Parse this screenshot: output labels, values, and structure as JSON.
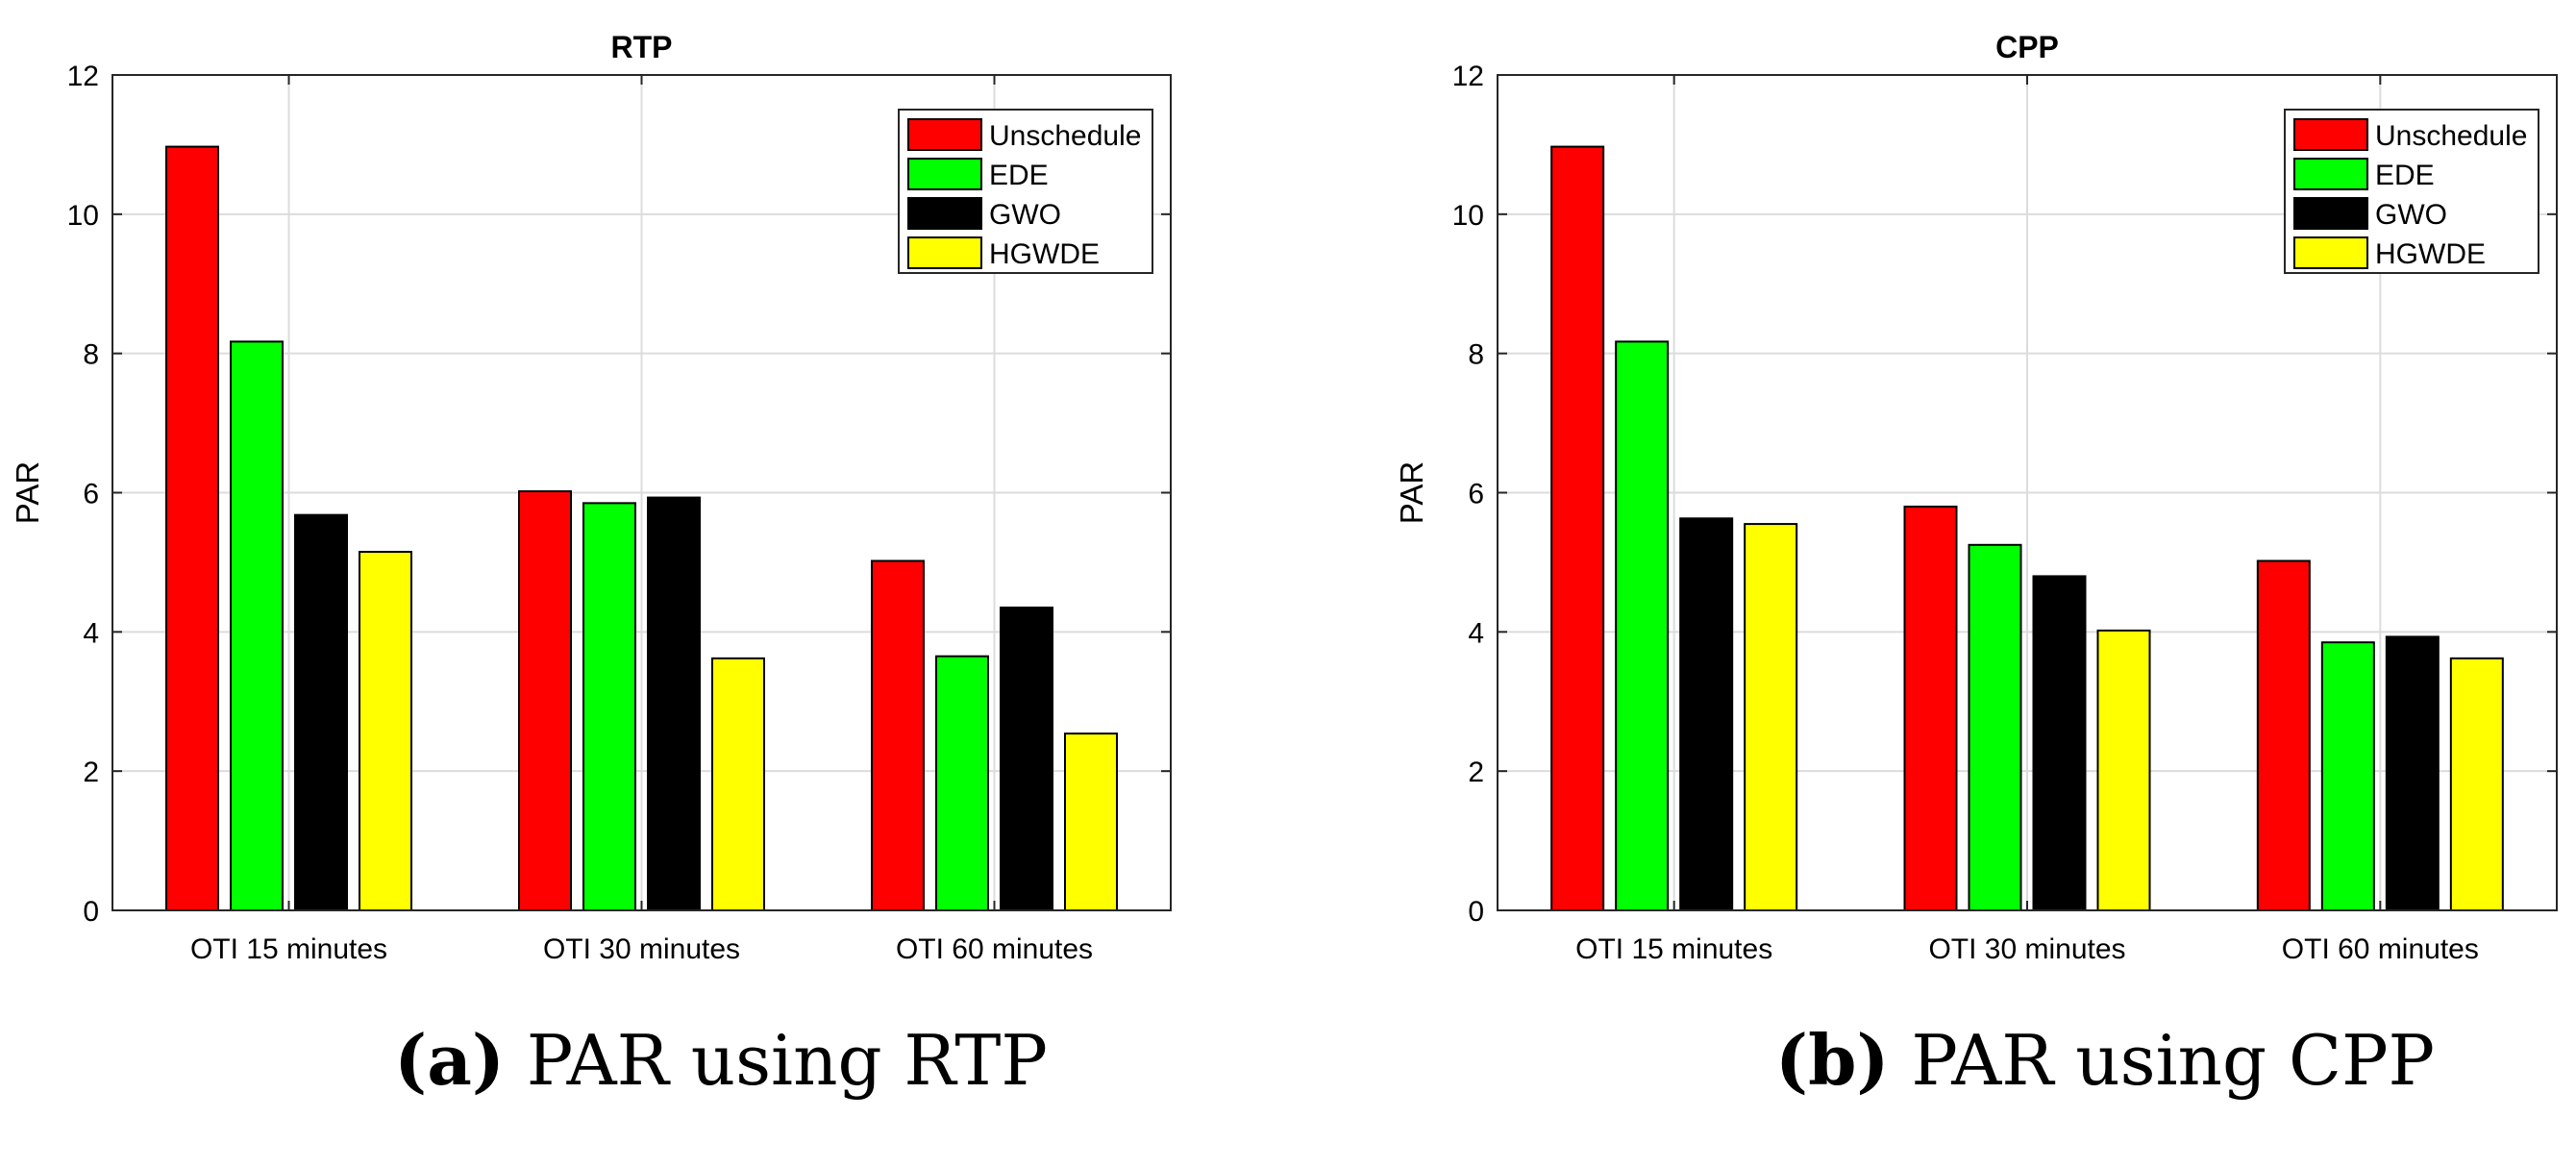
{
  "chart_data": [
    {
      "type": "bar",
      "title": "RTP",
      "xlabel": "",
      "ylabel": "PAR",
      "ylim": [
        0,
        12
      ],
      "yticks": [
        0,
        2,
        4,
        6,
        8,
        10,
        12
      ],
      "grid": true,
      "legend_position": "top-right",
      "categories": [
        "OTI 15 minutes",
        "OTI 30 minutes",
        "OTI 60 minutes"
      ],
      "series": [
        {
          "name": "Unschedule",
          "color": "#ff0000",
          "values": [
            10.97,
            6.02,
            5.02
          ]
        },
        {
          "name": "EDE",
          "color": "#00ff00",
          "values": [
            8.17,
            5.85,
            3.65
          ]
        },
        {
          "name": "GWO",
          "color": "#000000",
          "values": [
            5.68,
            5.93,
            4.35
          ]
        },
        {
          "name": "HGWDE",
          "color": "#ffff00",
          "values": [
            5.15,
            3.62,
            2.54
          ]
        }
      ]
    },
    {
      "type": "bar",
      "title": "CPP",
      "xlabel": "",
      "ylabel": "PAR",
      "ylim": [
        0,
        12
      ],
      "yticks": [
        0,
        2,
        4,
        6,
        8,
        10,
        12
      ],
      "grid": true,
      "legend_position": "top-right",
      "categories": [
        "OTI 15 minutes",
        "OTI 30 minutes",
        "OTI 60 minutes"
      ],
      "series": [
        {
          "name": "Unschedule",
          "color": "#ff0000",
          "values": [
            10.97,
            5.8,
            5.02
          ]
        },
        {
          "name": "EDE",
          "color": "#00ff00",
          "values": [
            8.17,
            5.25,
            3.85
          ]
        },
        {
          "name": "GWO",
          "color": "#000000",
          "values": [
            5.63,
            4.8,
            3.93
          ]
        },
        {
          "name": "HGWDE",
          "color": "#ffff00",
          "values": [
            5.55,
            4.02,
            3.62
          ]
        }
      ]
    }
  ],
  "captions": [
    {
      "tag": "(a)",
      "text": " PAR using RTP"
    },
    {
      "tag": "(b)",
      "text": " PAR using CPP"
    }
  ]
}
